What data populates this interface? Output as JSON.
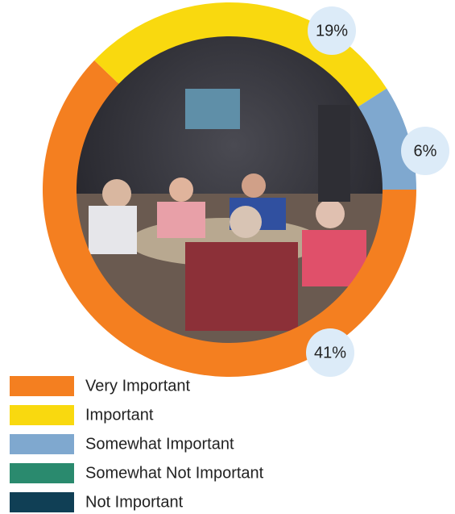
{
  "chart_data": {
    "type": "donut",
    "categories": [
      "Very Important",
      "Important",
      "Somewhat Important",
      "Somewhat Not Important",
      "Not Important"
    ],
    "values": [
      41,
      19,
      6,
      null,
      null
    ],
    "value_labels": [
      "41%",
      "19%",
      "6%",
      null,
      null
    ],
    "colors": [
      "#f47f20",
      "#f9d90f",
      "#7fa8cf",
      "#2a8a6e",
      "#103f55"
    ]
  }
}
